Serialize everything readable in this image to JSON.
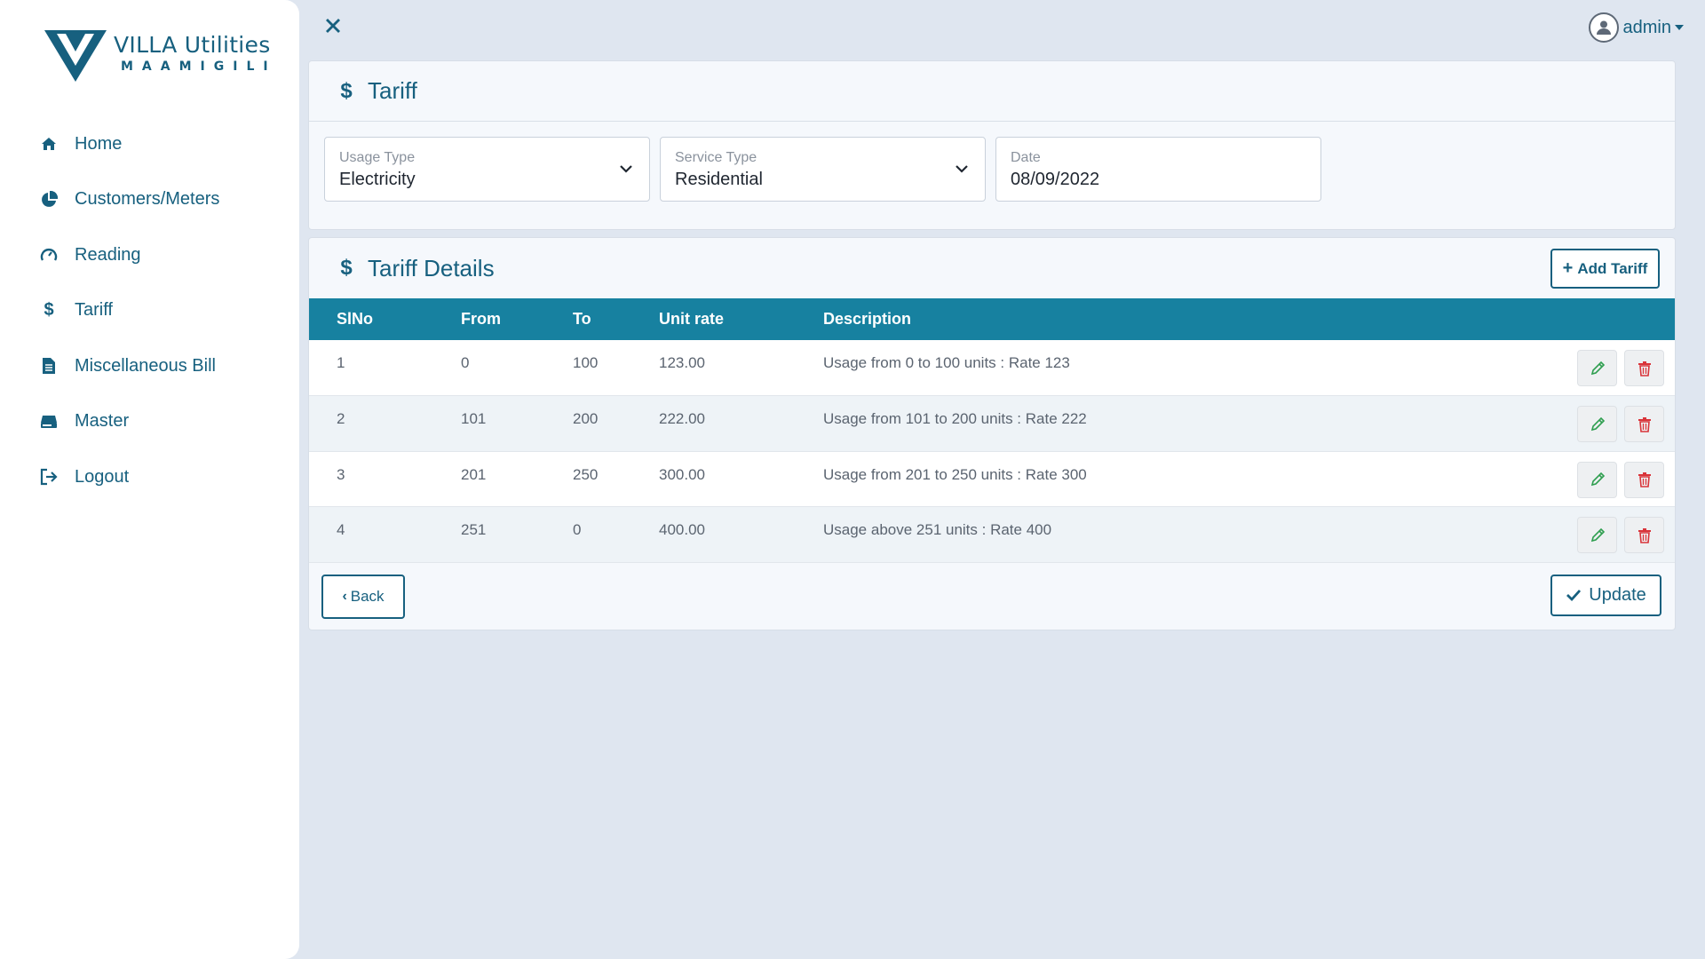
{
  "brand": {
    "title": "VILLA Utilities",
    "subtitle": "MAAMIGILI"
  },
  "sidebar": {
    "items": [
      {
        "label": "Home",
        "icon": "home-icon"
      },
      {
        "label": "Customers/Meters",
        "icon": "pie-chart-icon"
      },
      {
        "label": "Reading",
        "icon": "gauge-icon"
      },
      {
        "label": "Tariff",
        "icon": "dollar-icon"
      },
      {
        "label": "Miscellaneous Bill",
        "icon": "document-icon"
      },
      {
        "label": "Master",
        "icon": "hdd-icon"
      },
      {
        "label": "Logout",
        "icon": "logout-icon"
      }
    ]
  },
  "topbar": {
    "user": "admin"
  },
  "tariff": {
    "title": "Tariff",
    "usage_type": {
      "label": "Usage Type",
      "value": "Electricity"
    },
    "service_type": {
      "label": "Service Type",
      "value": "Residential"
    },
    "date": {
      "label": "Date",
      "value": "08/09/2022"
    }
  },
  "details": {
    "title": "Tariff Details",
    "add_label": "Add Tariff",
    "columns": [
      "SlNo",
      "From",
      "To",
      "Unit rate",
      "Description"
    ],
    "rows": [
      {
        "slno": "1",
        "from": "0",
        "to": "100",
        "rate": "123.00",
        "description": "Usage from 0 to 100 units : Rate 123"
      },
      {
        "slno": "2",
        "from": "101",
        "to": "200",
        "rate": "222.00",
        "description": "Usage from 101 to 200 units : Rate 222"
      },
      {
        "slno": "3",
        "from": "201",
        "to": "250",
        "rate": "300.00",
        "description": "Usage from 201 to 250 units : Rate 300"
      },
      {
        "slno": "4",
        "from": "251",
        "to": "0",
        "rate": "400.00",
        "description": "Usage above 251 units : Rate 400"
      }
    ],
    "back_label": "Back",
    "update_label": "Update"
  },
  "colors": {
    "primary": "#17607f",
    "table_header": "#1781a0",
    "edit": "#2e9e4f",
    "delete": "#d9343a"
  }
}
